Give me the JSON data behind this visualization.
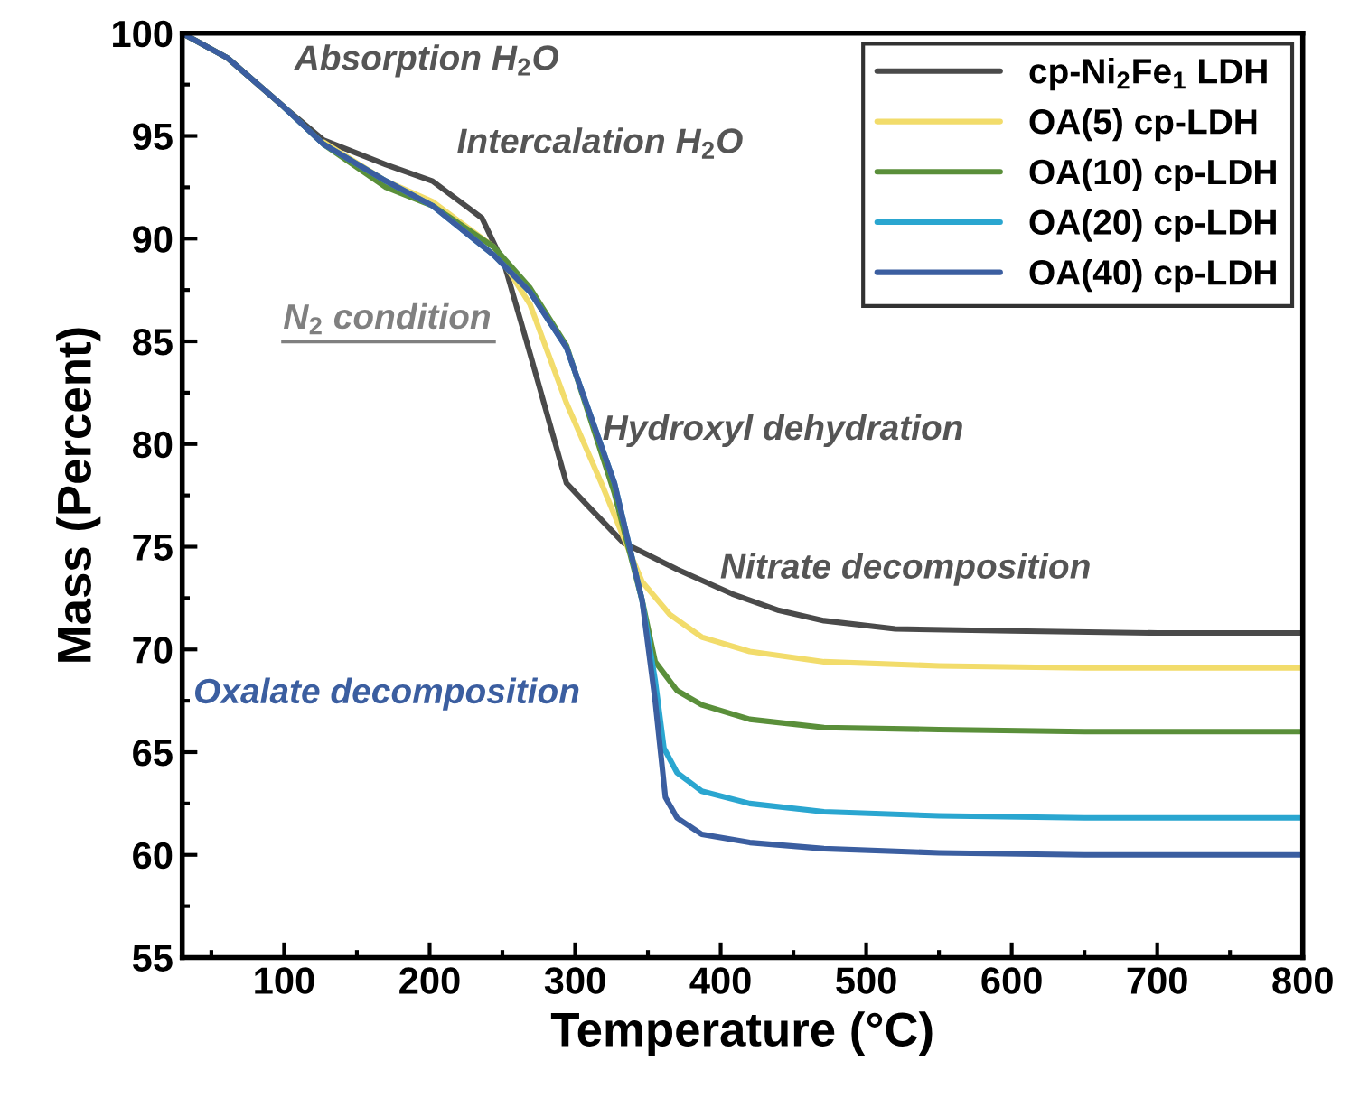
{
  "chart_data": {
    "type": "line",
    "xlabel": "Temperature (°C)",
    "ylabel": "Mass (Percent)",
    "xlim": [
      30,
      800
    ],
    "ylim": [
      55,
      100
    ],
    "xticks": [
      100,
      200,
      300,
      400,
      500,
      600,
      700,
      800
    ],
    "yticks": [
      55,
      60,
      65,
      70,
      75,
      80,
      85,
      90,
      95,
      100
    ],
    "grid": false,
    "legend": "top right",
    "line_style": "solid",
    "marker": "none",
    "series": [
      {
        "name": "cp-Ni$_{2}$Fe$_{1}$ LDH",
        "color": "#4a4a4a",
        "x": [
          30,
          61,
          100,
          127,
          170,
          202,
          236,
          252,
          269,
          294,
          310,
          333,
          370,
          408,
          440,
          471,
          520,
          600,
          700,
          800
        ],
        "values": [
          100,
          98.8,
          96.4,
          94.8,
          93.6,
          92.8,
          91.0,
          88.6,
          84.4,
          78.1,
          76.9,
          75.2,
          73.9,
          72.7,
          71.9,
          71.4,
          71.0,
          70.9,
          70.8,
          70.8
        ]
      },
      {
        "name": "OA(5) cp-LDH",
        "color": "#f2dc6b",
        "x": [
          127,
          170,
          202,
          244,
          269,
          294,
          318,
          333,
          346,
          365,
          387,
          420,
          471,
          550,
          650,
          800
        ],
        "values": [
          94.7,
          92.8,
          91.8,
          89.6,
          86.8,
          82.0,
          78.1,
          75.5,
          73.3,
          71.7,
          70.6,
          69.9,
          69.4,
          69.2,
          69.1,
          69.1
        ]
      },
      {
        "name": "OA(10) cp-LDH",
        "color": "#5a8f3a",
        "x": [
          30,
          61,
          100,
          127,
          170,
          202,
          244,
          269,
          294,
          327,
          346,
          355,
          370,
          387,
          420,
          471,
          550,
          650,
          800
        ],
        "values": [
          100,
          98.8,
          96.4,
          94.6,
          92.5,
          91.6,
          89.6,
          87.6,
          84.8,
          77.6,
          72.4,
          69.4,
          68.0,
          67.3,
          66.6,
          66.2,
          66.1,
          66.0,
          66.0
        ]
      },
      {
        "name": "OA(20) cp-LDH",
        "color": "#2aa6d0",
        "x": [
          100,
          127,
          170,
          202,
          244,
          269,
          294,
          327,
          346,
          355,
          361,
          370,
          387,
          420,
          471,
          550,
          650,
          800
        ],
        "values": [
          96.4,
          94.6,
          92.8,
          91.6,
          89.2,
          87.4,
          84.7,
          78.1,
          72.4,
          68.5,
          65.2,
          64.0,
          63.1,
          62.5,
          62.1,
          61.9,
          61.8,
          61.8
        ]
      },
      {
        "name": "OA(40) cp-LDH",
        "color": "#3b5ea0",
        "x": [
          30,
          61,
          100,
          127,
          170,
          202,
          244,
          269,
          294,
          327,
          346,
          355,
          362,
          370,
          387,
          420,
          471,
          550,
          650,
          800
        ],
        "values": [
          100,
          98.8,
          96.4,
          94.6,
          92.8,
          91.6,
          89.2,
          87.4,
          84.7,
          78.1,
          72.4,
          67.5,
          62.8,
          61.8,
          61.0,
          60.6,
          60.3,
          60.1,
          60.0,
          60.0
        ]
      }
    ],
    "annotations": [
      "Absorption H$_{2}$O",
      "Intercalation H$_{2}$O",
      "N$_{2}$ condition",
      "Hydroxyl dehydration",
      "Nitrate decomposition",
      "Oxalate decomposition"
    ]
  }
}
